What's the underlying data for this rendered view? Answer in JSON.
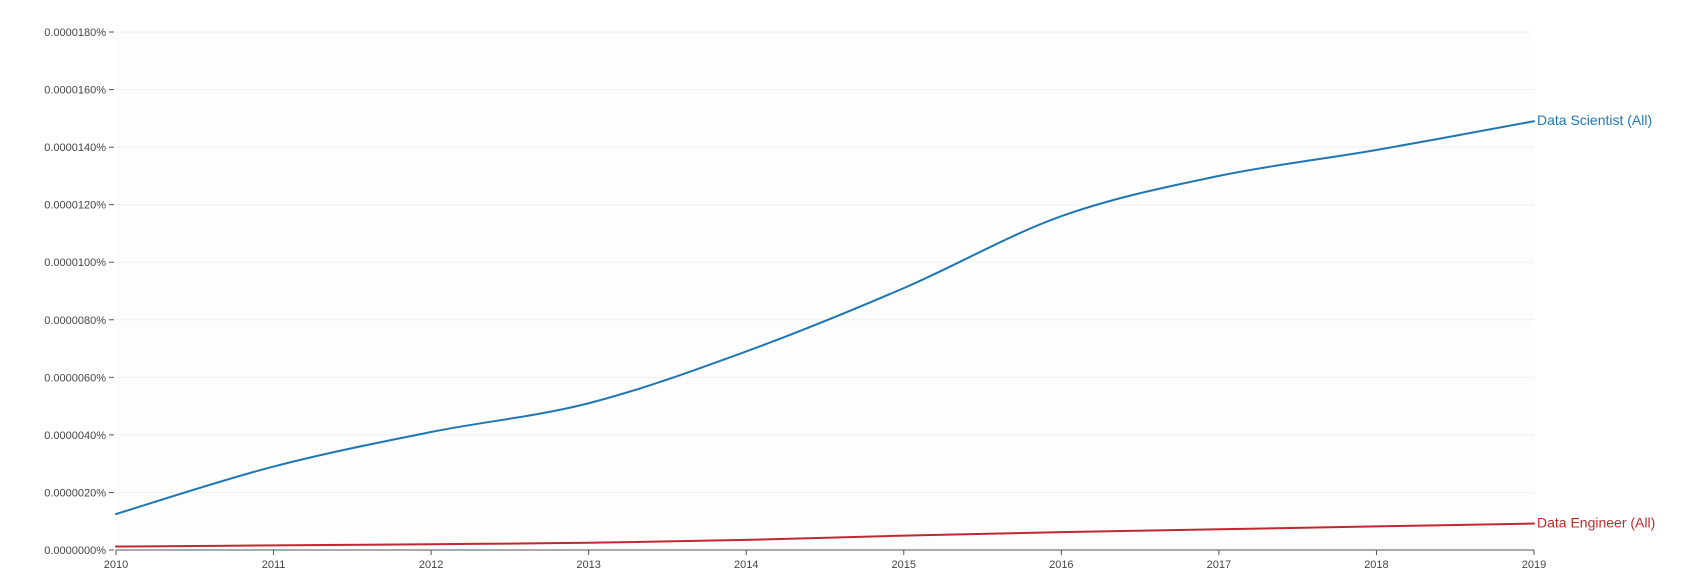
{
  "chart_data": {
    "type": "line",
    "title": "",
    "xlabel": "",
    "ylabel": "",
    "x": [
      2010,
      2011,
      2012,
      2013,
      2014,
      2015,
      2016,
      2017,
      2018,
      2019
    ],
    "x_tick_labels": [
      "2010",
      "2011",
      "2012",
      "2013",
      "2014",
      "2015",
      "2016",
      "2017",
      "2018",
      "2019"
    ],
    "xlim": [
      2010,
      2019
    ],
    "ylim": [
      0,
      1.8e-05
    ],
    "y_ticks": [
      0,
      2e-06,
      4e-06,
      6e-06,
      8e-06,
      1e-05,
      1.2e-05,
      1.4e-05,
      1.6e-05,
      1.8e-05
    ],
    "y_tick_labels": [
      "0.0000000%",
      "0.0000020%",
      "0.0000040%",
      "0.0000060%",
      "0.0000080%",
      "0.0000100%",
      "0.0000120%",
      "0.0000140%",
      "0.0000160%",
      "0.0000180%"
    ],
    "grid": true,
    "legend": "inline labels at line ends (right)",
    "series": [
      {
        "name": "Data Scientist (All)",
        "color": "#1f77b4",
        "values": [
          1.25e-06,
          2.9e-06,
          4.1e-06,
          5.1e-06,
          6.9e-06,
          9.1e-06,
          1.16e-05,
          1.3e-05,
          1.39e-05,
          1.49e-05
        ]
      },
      {
        "name": "Data Engineer (All)",
        "color": "#c0282f",
        "values": [
          1.2e-07,
          1.6e-07,
          2e-07,
          2.5e-07,
          3.5e-07,
          5e-07,
          6.2e-07,
          7.2e-07,
          8.2e-07,
          9.2e-07
        ]
      }
    ]
  }
}
